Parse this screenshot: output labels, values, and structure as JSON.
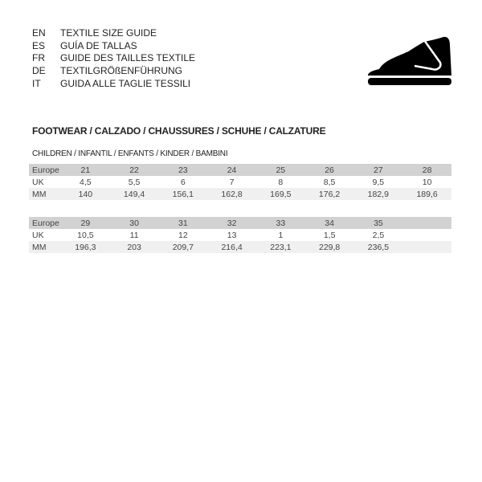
{
  "languages": [
    {
      "code": "EN",
      "title": "TEXTILE SIZE GUIDE"
    },
    {
      "code": "ES",
      "title": "GUÍA DE TALLAS"
    },
    {
      "code": "FR",
      "title": "GUIDE DES TAILLES TEXTILE"
    },
    {
      "code": "DE",
      "title": "TEXTILGRÖßENFÜHRUNG"
    },
    {
      "code": "IT",
      "title": "GUIDA ALLE TAGLIE TESSILI"
    }
  ],
  "icon": "shoe-icon",
  "section_title": "FOOTWEAR / CALZADO / CHAUSSURES / SCHUHE / CALZATURE",
  "subsection_title": "CHILDREN / INFANTIL / ENFANTS / KINDER / BAMBINI",
  "tables": [
    {
      "rows": [
        {
          "label": "Europe",
          "values": [
            "21",
            "22",
            "23",
            "24",
            "25",
            "26",
            "27",
            "28"
          ]
        },
        {
          "label": "UK",
          "values": [
            "4,5",
            "5,5",
            "6",
            "7",
            "8",
            "8,5",
            "9,5",
            "10"
          ]
        },
        {
          "label": "MM",
          "values": [
            "140",
            "149,4",
            "156,1",
            "162,8",
            "169,5",
            "176,2",
            "182,9",
            "189,6"
          ]
        }
      ]
    },
    {
      "rows": [
        {
          "label": "Europe",
          "values": [
            "29",
            "30",
            "31",
            "32",
            "33",
            "34",
            "35",
            ""
          ]
        },
        {
          "label": "UK",
          "values": [
            "10,5",
            "11",
            "12",
            "13",
            "1",
            "1,5",
            "2,5",
            ""
          ]
        },
        {
          "label": "MM",
          "values": [
            "196,3",
            "203",
            "209,7",
            "216,4",
            "223,1",
            "229,8",
            "236,5",
            ""
          ]
        }
      ]
    }
  ]
}
